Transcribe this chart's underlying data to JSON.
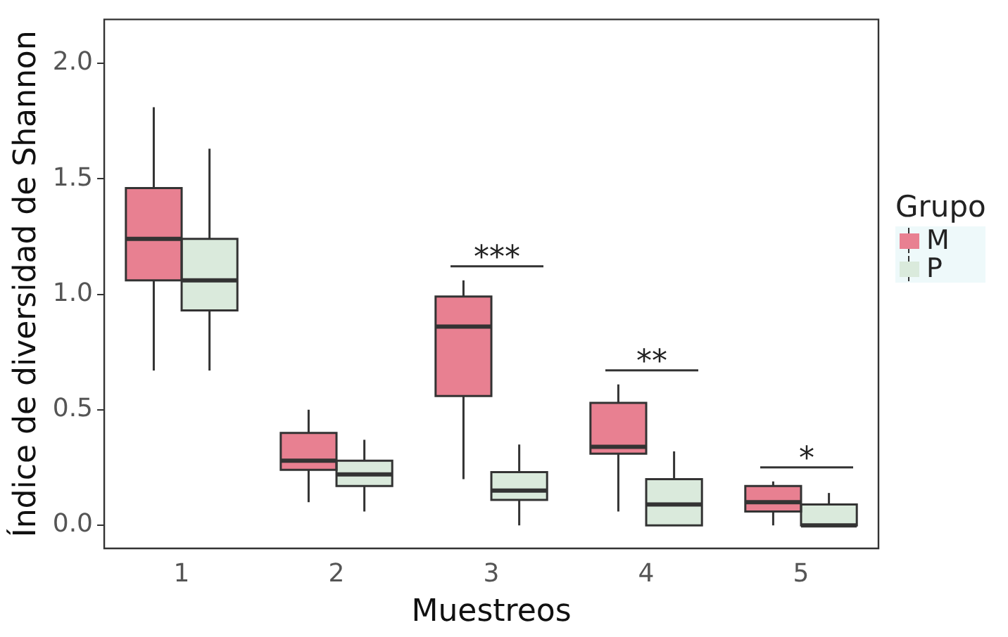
{
  "chart_data": {
    "type": "box",
    "xlabel": "Muestreos",
    "ylabel": "Índice de diversidad de Shannon",
    "legend_title": "Grupo",
    "legend": "right",
    "categories": [
      "1",
      "2",
      "3",
      "4",
      "5"
    ],
    "ylim": [
      -0.1,
      2.19
    ],
    "yticks": [
      {
        "value": 0,
        "label": "0.0"
      },
      {
        "value": 0.5,
        "label": "0.5"
      },
      {
        "value": 1,
        "label": "1.0"
      },
      {
        "value": 1.5,
        "label": "1.5"
      },
      {
        "value": 2,
        "label": "2.0"
      }
    ],
    "series": [
      {
        "name": "M",
        "color": "#e88091",
        "boxes": [
          {
            "low": 0.67,
            "q1": 1.06,
            "median": 1.24,
            "q3": 1.46,
            "high": 1.81
          },
          {
            "low": 0.1,
            "q1": 0.24,
            "median": 0.28,
            "q3": 0.4,
            "high": 0.5
          },
          {
            "low": 0.2,
            "q1": 0.56,
            "median": 0.86,
            "q3": 0.99,
            "high": 1.06
          },
          {
            "low": 0.06,
            "q1": 0.31,
            "median": 0.34,
            "q3": 0.53,
            "high": 0.61
          },
          {
            "low": 0,
            "q1": 0.06,
            "median": 0.1,
            "q3": 0.17,
            "high": 0.19
          }
        ]
      },
      {
        "name": "P",
        "color": "#daeadc",
        "boxes": [
          {
            "low": 0.67,
            "q1": 0.93,
            "median": 1.06,
            "q3": 1.24,
            "high": 1.63
          },
          {
            "low": 0.06,
            "q1": 0.17,
            "median": 0.22,
            "q3": 0.28,
            "high": 0.37
          },
          {
            "low": 0,
            "q1": 0.11,
            "median": 0.15,
            "q3": 0.23,
            "high": 0.35
          },
          {
            "low": 0,
            "q1": 0,
            "median": 0.09,
            "q3": 0.2,
            "high": 0.32
          },
          {
            "low": 0,
            "q1": 0,
            "median": 0,
            "q3": 0.09,
            "high": 0.14
          }
        ]
      }
    ],
    "annotations": [
      "***",
      "**",
      "*"
    ]
  }
}
